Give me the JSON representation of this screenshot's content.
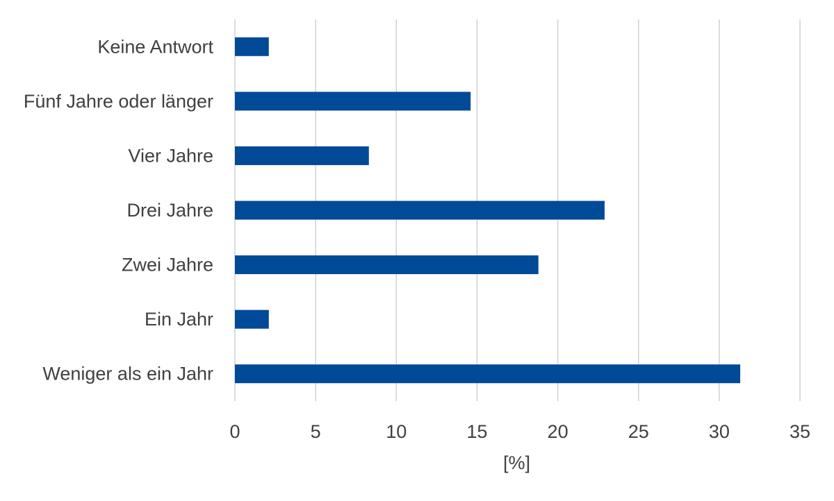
{
  "chart_data": {
    "type": "bar",
    "orientation": "horizontal",
    "categories": [
      "Keine Antwort",
      "Fünf Jahre oder länger",
      "Vier Jahre",
      "Drei Jahre",
      "Zwei Jahre",
      "Ein Jahr",
      "Weniger als ein Jahr"
    ],
    "values": [
      2.1,
      14.6,
      8.3,
      22.9,
      18.8,
      2.1,
      31.3
    ],
    "xlabel": "[%]",
    "ylabel": "",
    "xlim": [
      0,
      35
    ],
    "xticks": [
      "0",
      "5",
      "10",
      "15",
      "20",
      "25",
      "30",
      "35"
    ],
    "grid": true,
    "bar_color": "#004a98"
  }
}
